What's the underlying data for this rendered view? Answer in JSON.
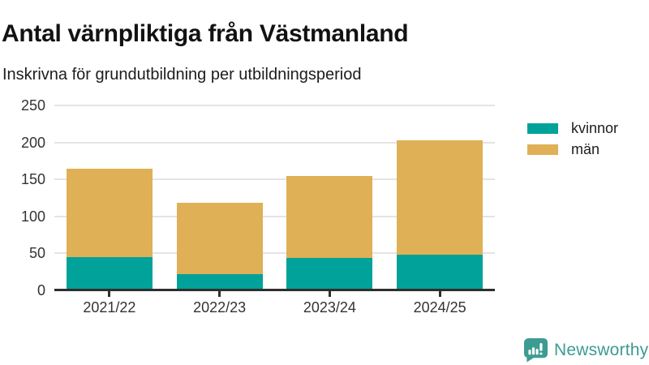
{
  "chart_data": {
    "type": "bar",
    "stacked": true,
    "title": "Antal värnpliktiga från Västmanland",
    "subtitle": "Inskrivna för grundutbildning per utbildningsperiod",
    "categories": [
      "2021/22",
      "2022/23",
      "2023/24",
      "2024/25"
    ],
    "series": [
      {
        "name": "kvinnor",
        "color": "#00a29a",
        "values": [
          45,
          22,
          44,
          48
        ]
      },
      {
        "name": "män",
        "color": "#dfb055",
        "values": [
          119,
          96,
          111,
          155
        ]
      }
    ],
    "stack_totals": [
      164,
      118,
      155,
      203
    ],
    "ylim": [
      0,
      250
    ],
    "yticks": [
      0,
      50,
      100,
      150,
      200,
      250
    ],
    "grid": true,
    "legend_position": "right",
    "axis_color": "#2e2e2e",
    "gridline_color": "#e4e4e4"
  },
  "legend": {
    "items": [
      {
        "label": "kvinnor",
        "color": "#00a29a"
      },
      {
        "label": "män",
        "color": "#dfb055"
      }
    ]
  },
  "footer": {
    "brand": "Newsworthy",
    "brand_color": "#3d9b92"
  }
}
